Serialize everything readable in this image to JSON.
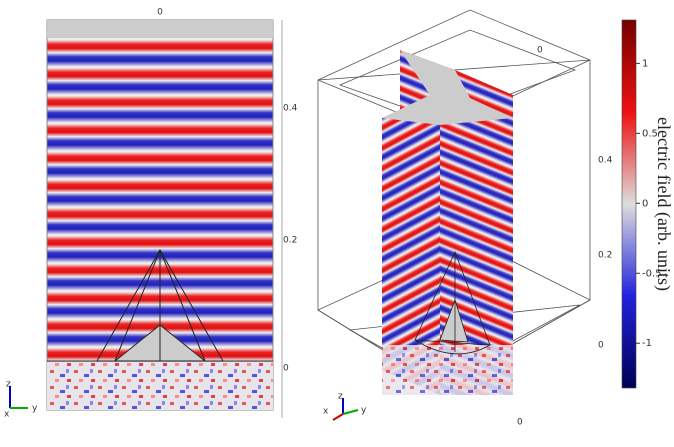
{
  "left_panel": {
    "top_tick": 0,
    "ticks": [
      0.4,
      0.2,
      0
    ],
    "triad": [
      "z",
      "x",
      "y"
    ]
  },
  "right_panel": {
    "top_tick": 0,
    "ticks": [
      0.4,
      0.2,
      0
    ],
    "bottom_tick": 0,
    "triad": [
      "z",
      "y",
      "x"
    ]
  },
  "colorbar": {
    "label": "electric field (arb. units)",
    "range": [
      -1.32,
      1.31
    ],
    "ticks": [
      1,
      0.5,
      0,
      -0.5,
      -1
    ]
  }
}
